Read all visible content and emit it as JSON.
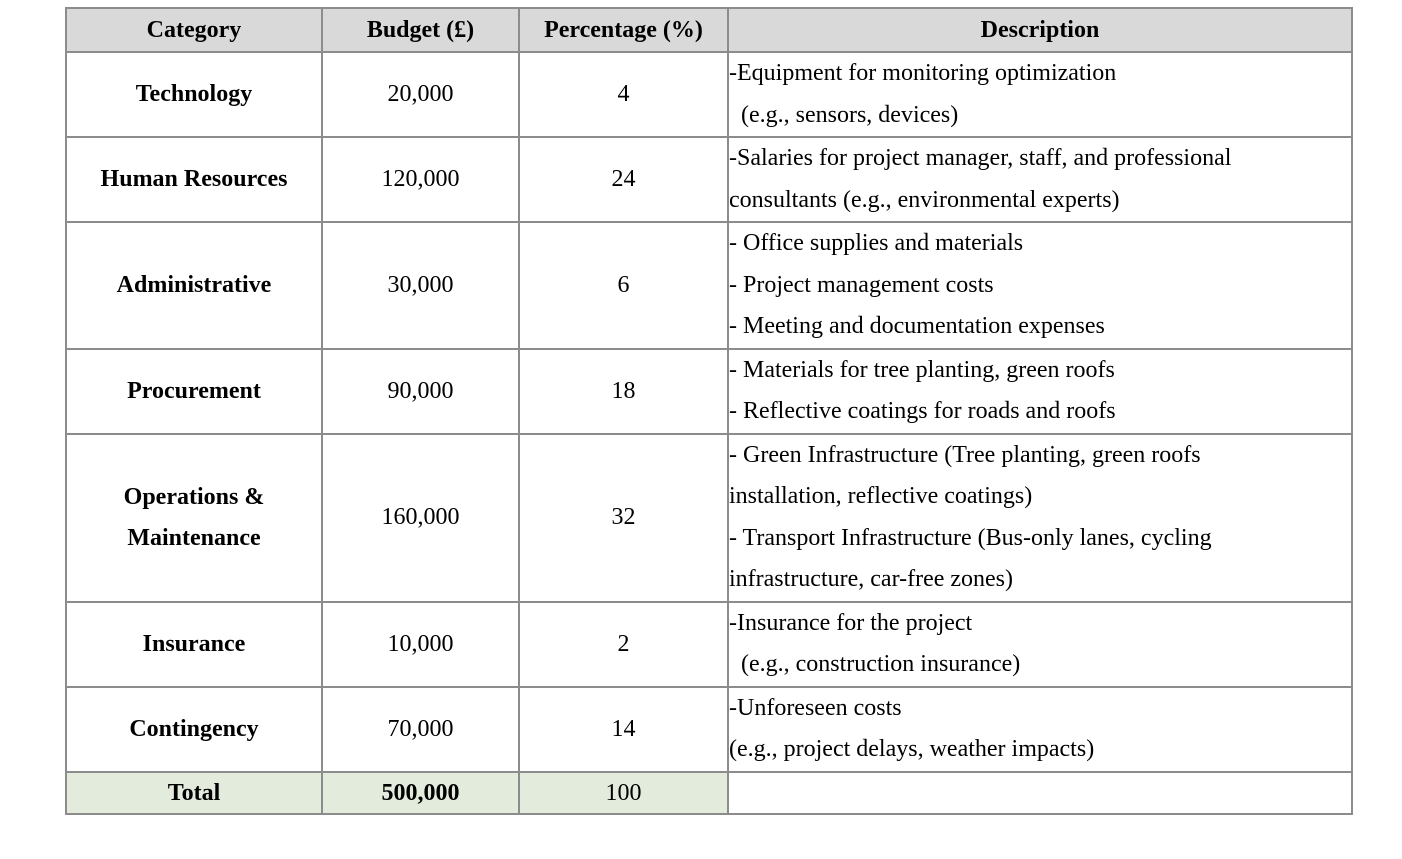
{
  "headers": {
    "category": "Category",
    "budget": "Budget (£)",
    "percentage": "Percentage (%)",
    "description": "Description"
  },
  "rows": [
    {
      "category": [
        "Technology"
      ],
      "budget": "20,000",
      "percentage": "4",
      "description": [
        "-Equipment for monitoring optimization",
        "  (e.g., sensors, devices)"
      ]
    },
    {
      "category": [
        "Human Resources"
      ],
      "budget": "120,000",
      "percentage": "24",
      "description": [
        "-Salaries for project manager, staff, and professional",
        "consultants (e.g., environmental experts)"
      ]
    },
    {
      "category": [
        "Administrative"
      ],
      "budget": "30,000",
      "percentage": "6",
      "description": [
        "- Office supplies and materials",
        "- Project management costs",
        "- Meeting and documentation expenses"
      ]
    },
    {
      "category": [
        "Procurement"
      ],
      "budget": "90,000",
      "percentage": "18",
      "description": [
        "- Materials for tree planting, green roofs",
        "- Reflective coatings for roads and roofs"
      ]
    },
    {
      "category": [
        "Operations &",
        "Maintenance"
      ],
      "budget": "160,000",
      "percentage": "32",
      "description": [
        "- Green Infrastructure (Tree planting, green roofs",
        "installation, reflective coatings)",
        "- Transport Infrastructure (Bus-only lanes, cycling",
        "infrastructure, car-free zones)"
      ]
    },
    {
      "category": [
        "Insurance"
      ],
      "budget": "10,000",
      "percentage": "2",
      "description": [
        "-Insurance for the project",
        "  (e.g., construction insurance)"
      ]
    },
    {
      "category": [
        "Contingency"
      ],
      "budget": "70,000",
      "percentage": "14",
      "description": [
        "-Unforeseen costs",
        "(e.g., project delays, weather impacts)"
      ]
    }
  ],
  "total": {
    "label": "Total",
    "budget": "500,000",
    "percentage": "100",
    "description": ""
  },
  "colors": {
    "header_bg": "#d9d9d9",
    "total_bg": "#e3ecdc",
    "border": "#8c8c8c"
  }
}
